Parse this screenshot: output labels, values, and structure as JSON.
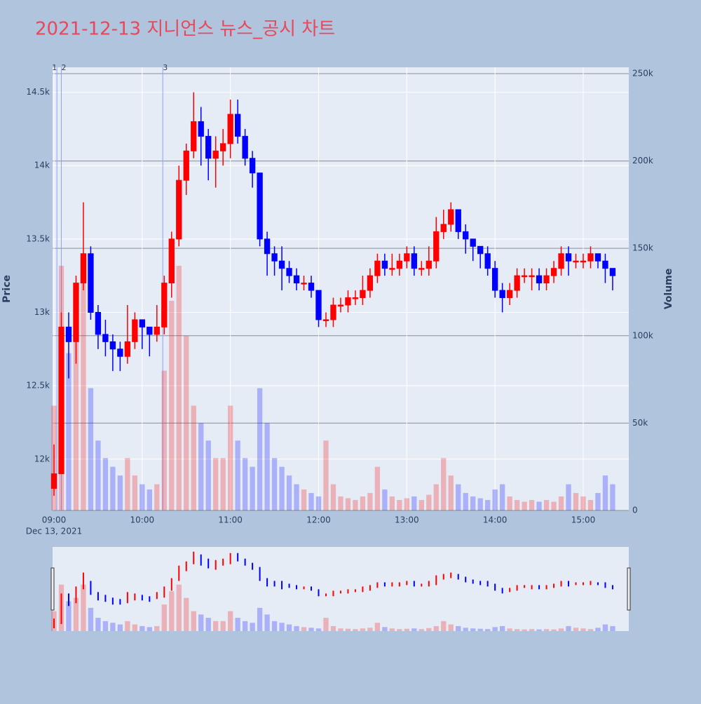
{
  "chart_data": {
    "type": "candlestick",
    "title": "2021-12-13 지니언스 뉴스_공시 차트",
    "y_label": "Price",
    "y2_label": "Volume",
    "date": "Dec 13, 2021",
    "increasing_color": "#ff0000",
    "decreasing_color": "#0000ff",
    "x": [
      "09:00",
      "09:05",
      "09:10",
      "09:15",
      "09:20",
      "09:25",
      "09:30",
      "09:35",
      "09:40",
      "09:45",
      "09:50",
      "09:55",
      "10:00",
      "10:05",
      "10:10",
      "10:15",
      "10:20",
      "10:25",
      "10:30",
      "10:35",
      "10:40",
      "10:45",
      "10:50",
      "10:55",
      "11:00",
      "11:05",
      "11:10",
      "11:15",
      "11:20",
      "11:25",
      "11:30",
      "11:35",
      "11:40",
      "11:45",
      "11:50",
      "11:55",
      "12:00",
      "12:05",
      "12:10",
      "12:15",
      "12:20",
      "12:25",
      "12:30",
      "12:35",
      "12:40",
      "12:45",
      "12:50",
      "12:55",
      "13:00",
      "13:05",
      "13:10",
      "13:15",
      "13:20",
      "13:25",
      "13:30",
      "13:35",
      "13:40",
      "13:45",
      "13:50",
      "13:55",
      "14:00",
      "14:05",
      "14:10",
      "14:15",
      "14:20",
      "14:25",
      "14:30",
      "14:35",
      "14:40",
      "14:45",
      "14:50",
      "14:55",
      "15:00",
      "15:05",
      "15:10",
      "15:15",
      "15:20"
    ],
    "open": [
      11800,
      11900,
      12900,
      12800,
      13200,
      13400,
      13000,
      12850,
      12800,
      12750,
      12700,
      12800,
      12950,
      12900,
      12850,
      12900,
      13200,
      13500,
      13900,
      14100,
      14300,
      14200,
      14050,
      14100,
      14150,
      14350,
      14200,
      14050,
      13950,
      13500,
      13400,
      13350,
      13300,
      13250,
      13200,
      13200,
      13150,
      12950,
      12950,
      13050,
      13050,
      13100,
      13100,
      13150,
      13250,
      13350,
      13300,
      13300,
      13350,
      13400,
      13300,
      13300,
      13350,
      13550,
      13600,
      13700,
      13550,
      13500,
      13450,
      13400,
      13300,
      13150,
      13100,
      13150,
      13250,
      13250,
      13250,
      13200,
      13250,
      13300,
      13400,
      13350,
      13350,
      13350,
      13400,
      13350,
      13300
    ],
    "high": [
      12100,
      13000,
      13000,
      13250,
      13750,
      13450,
      13050,
      12950,
      12850,
      12800,
      13050,
      13000,
      12950,
      12900,
      13050,
      13250,
      13550,
      14000,
      14150,
      14500,
      14400,
      14250,
      14200,
      14250,
      14450,
      14450,
      14250,
      14100,
      13950,
      13550,
      13450,
      13450,
      13350,
      13300,
      13250,
      13250,
      13150,
      13000,
      13100,
      13100,
      13150,
      13150,
      13250,
      13300,
      13400,
      13400,
      13400,
      13400,
      13450,
      13450,
      13350,
      13450,
      13650,
      13700,
      13750,
      13700,
      13600,
      13500,
      13450,
      13450,
      13350,
      13200,
      13200,
      13300,
      13300,
      13300,
      13300,
      13300,
      13350,
      13450,
      13450,
      13400,
      13400,
      13450,
      13400,
      13400,
      13300
    ],
    "low": [
      11750,
      11900,
      12550,
      12650,
      13150,
      12950,
      12750,
      12700,
      12600,
      12600,
      12650,
      12750,
      12750,
      12700,
      12800,
      12850,
      13100,
      13450,
      13800,
      14050,
      14000,
      13900,
      13850,
      14000,
      14050,
      14150,
      14000,
      13850,
      13450,
      13250,
      13250,
      13150,
      13200,
      13150,
      13150,
      13100,
      12900,
      12900,
      12900,
      13000,
      13000,
      13050,
      13050,
      13100,
      13200,
      13250,
      13250,
      13250,
      13300,
      13250,
      13250,
      13250,
      13300,
      13500,
      13550,
      13500,
      13400,
      13350,
      13300,
      13250,
      13100,
      13000,
      13050,
      13100,
      13200,
      13150,
      13150,
      13150,
      13200,
      13250,
      13250,
      13300,
      13300,
      13300,
      13300,
      13200,
      13150
    ],
    "close": [
      11900,
      12900,
      12800,
      13200,
      13400,
      13000,
      12850,
      12800,
      12750,
      12700,
      12800,
      12950,
      12900,
      12850,
      12900,
      13200,
      13500,
      13900,
      14100,
      14300,
      14200,
      14050,
      14100,
      14150,
      14350,
      14200,
      14050,
      13950,
      13500,
      13400,
      13350,
      13300,
      13250,
      13200,
      13200,
      13150,
      12950,
      12950,
      13050,
      13050,
      13100,
      13100,
      13150,
      13250,
      13350,
      13300,
      13300,
      13350,
      13400,
      13300,
      13300,
      13350,
      13550,
      13600,
      13700,
      13550,
      13500,
      13450,
      13400,
      13300,
      13150,
      13100,
      13150,
      13250,
      13250,
      13250,
      13200,
      13250,
      13300,
      13400,
      13350,
      13350,
      13350,
      13400,
      13350,
      13300,
      13250
    ],
    "volume": [
      60000,
      140000,
      90000,
      100000,
      140000,
      70000,
      40000,
      30000,
      25000,
      20000,
      30000,
      20000,
      15000,
      12000,
      15000,
      80000,
      120000,
      140000,
      100000,
      60000,
      50000,
      40000,
      30000,
      30000,
      60000,
      40000,
      30000,
      25000,
      70000,
      50000,
      30000,
      25000,
      20000,
      15000,
      12000,
      10000,
      8000,
      40000,
      15000,
      8000,
      7000,
      6000,
      8000,
      10000,
      25000,
      12000,
      8000,
      6000,
      7000,
      8000,
      6000,
      9000,
      15000,
      30000,
      20000,
      15000,
      10000,
      8000,
      7000,
      6000,
      12000,
      15000,
      8000,
      6000,
      5000,
      6000,
      5000,
      6000,
      5000,
      8000,
      15000,
      10000,
      8000,
      6000,
      10000,
      20000,
      15000
    ],
    "xlim": [
      "09:00",
      "15:31"
    ],
    "xticks": [
      "09:00",
      "10:00",
      "11:00",
      "12:00",
      "13:00",
      "14:00",
      "15:00"
    ],
    "ylim": [
      11650,
      14670
    ],
    "yticks": [
      {
        "value": 12000,
        "label": "12k"
      },
      {
        "value": 12500,
        "label": "12.5k"
      },
      {
        "value": 13000,
        "label": "13k"
      },
      {
        "value": 13500,
        "label": "13.5k"
      },
      {
        "value": 14000,
        "label": "14k"
      },
      {
        "value": 14500,
        "label": "14.5k"
      }
    ],
    "y2lim": [
      0,
      253600
    ],
    "y2ticks": [
      0,
      {
        "value": 50000,
        "label": "50k"
      },
      {
        "value": 100000,
        "label": "100k"
      },
      {
        "value": 150000,
        "label": "150k"
      },
      {
        "value": 200000,
        "label": "200k"
      },
      {
        "value": 250000,
        "label": "250k"
      }
    ],
    "annotations": [
      {
        "x": "09:02",
        "text": "1"
      },
      {
        "x": "09:05",
        "text": "2"
      },
      {
        "x": "10:14",
        "text": "3"
      }
    ],
    "grid": true,
    "rangeslider": true
  }
}
